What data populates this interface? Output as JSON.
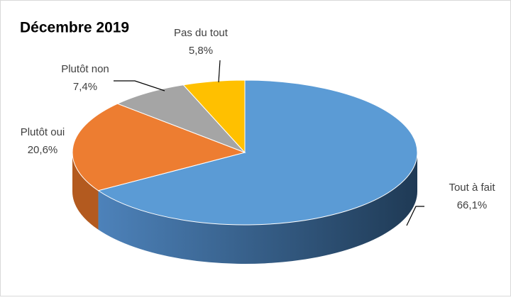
{
  "chart_data": {
    "type": "pie",
    "title": "Décembre 2019",
    "categories": [
      "Tout à fait",
      "Plutôt oui",
      "Plutôt non",
      "Pas du tout"
    ],
    "values": [
      66.1,
      20.6,
      7.4,
      5.8
    ],
    "value_labels": [
      "66,1%",
      "20,6%",
      "7,4%",
      "5,8%"
    ],
    "colors": [
      "#5b9bd5",
      "#ed7d31",
      "#a5a5a5",
      "#ffc000"
    ]
  }
}
